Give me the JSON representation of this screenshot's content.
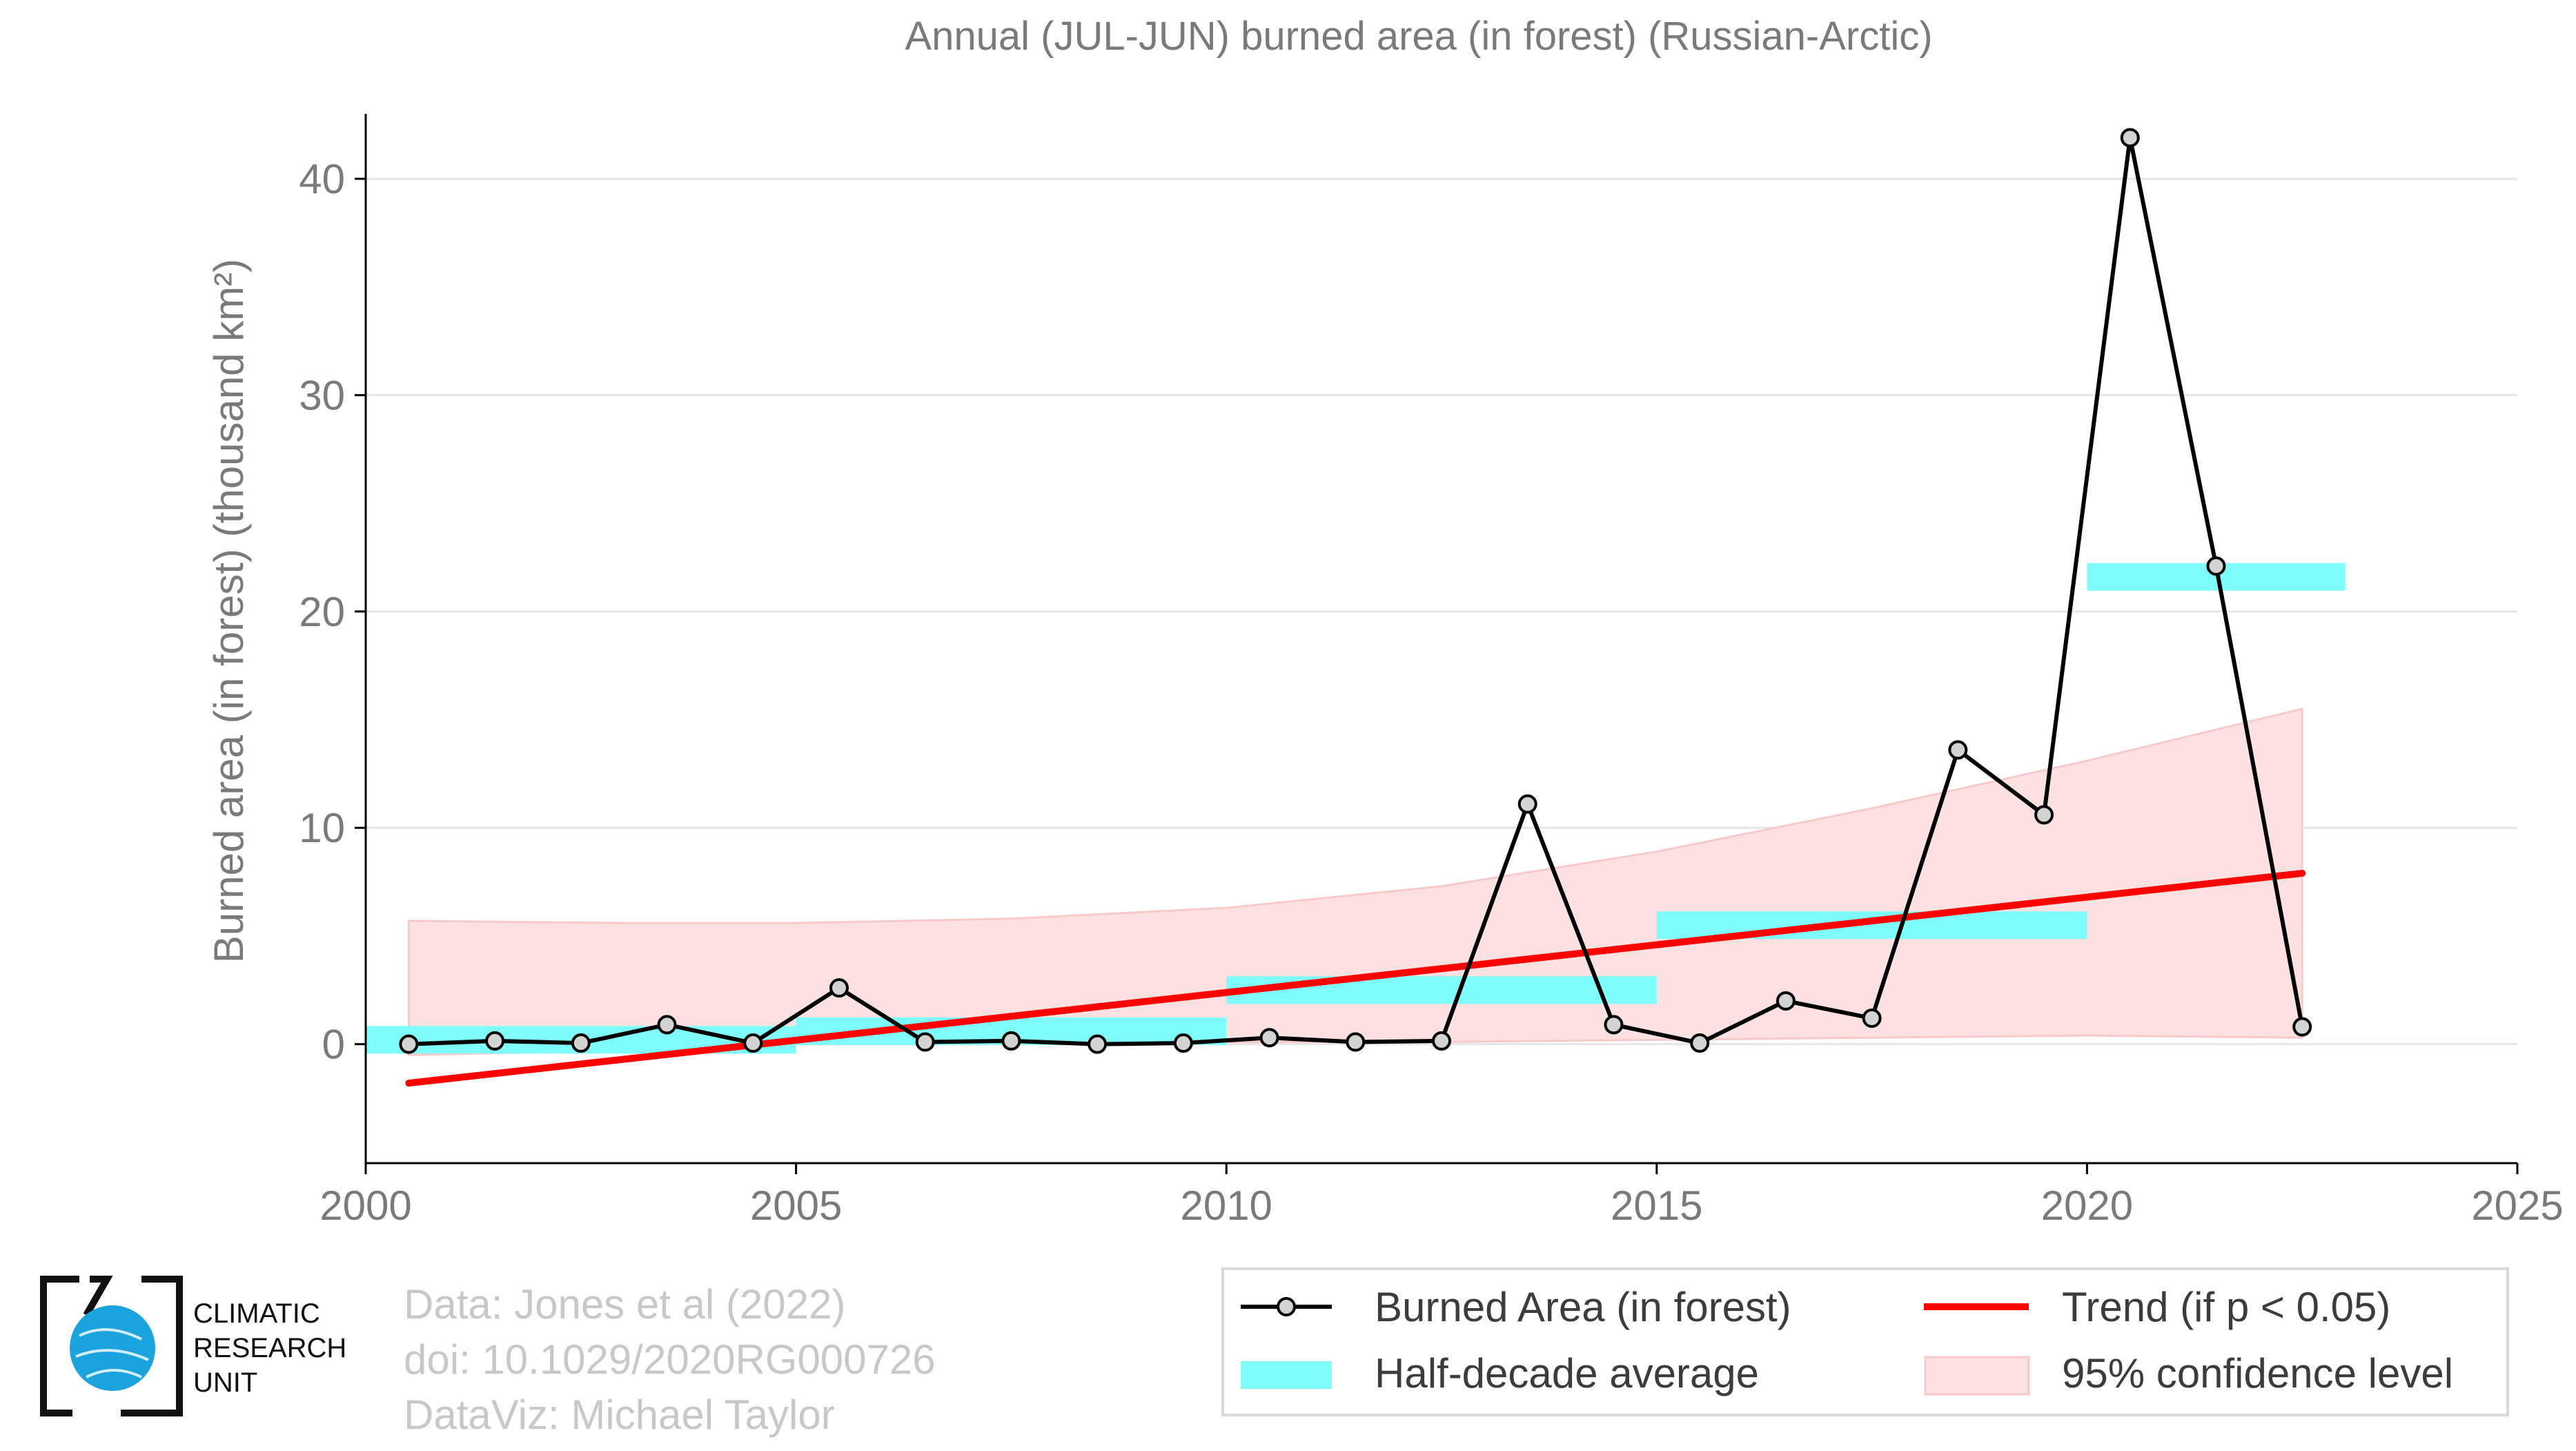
{
  "chart_data": {
    "type": "line",
    "title": "Annual (JUL-JUN) burned area (in forest) (Russian-Arctic)",
    "ylabel": "Burned area (in forest) (thousand km²)",
    "xlabel": "",
    "xlim": [
      2000,
      2025
    ],
    "ylim": [
      -5.5,
      43
    ],
    "x_ticks": [
      2000,
      2005,
      2010,
      2015,
      2020,
      2025
    ],
    "y_ticks": [
      0,
      10,
      20,
      30,
      40
    ],
    "grid": "horizontal",
    "legend_position": "bottom-right",
    "series": [
      {
        "name": "Burned Area (in forest)",
        "color": "#000000",
        "marker_fill": "#d3d3d3",
        "x": [
          2000.5,
          2001.5,
          2002.5,
          2003.5,
          2004.5,
          2005.5,
          2006.5,
          2007.5,
          2008.5,
          2009.5,
          2010.5,
          2011.5,
          2012.5,
          2013.5,
          2014.5,
          2015.5,
          2016.5,
          2017.5,
          2018.5,
          2019.5,
          2020.5,
          2021.5,
          2022.5
        ],
        "y": [
          0.0,
          0.15,
          0.05,
          0.9,
          0.05,
          2.6,
          0.1,
          0.15,
          0.0,
          0.05,
          0.3,
          0.1,
          0.15,
          11.1,
          0.9,
          0.05,
          2.0,
          1.2,
          13.6,
          10.6,
          41.9,
          22.1,
          0.8
        ]
      },
      {
        "name": "Half-decade average",
        "color": "#7ffcfc",
        "segments": [
          {
            "x0": 2000,
            "x1": 2005,
            "y": 0.2
          },
          {
            "x0": 2005,
            "x1": 2010,
            "y": 0.6
          },
          {
            "x0": 2010,
            "x1": 2015,
            "y": 2.5
          },
          {
            "x0": 2015,
            "x1": 2020,
            "y": 5.5
          },
          {
            "x0": 2020,
            "x1": 2023,
            "y": 21.6
          }
        ]
      },
      {
        "name": "Trend (if p < 0.05)",
        "color": "#ff0000",
        "x": [
          2000.5,
          2022.5
        ],
        "y": [
          -1.8,
          7.9
        ]
      },
      {
        "name": "95% confidence level",
        "color": "#fde1e1",
        "x": [
          2000.5,
          2003,
          2005,
          2007.5,
          2010,
          2012.5,
          2015,
          2017.5,
          2020,
          2022.5
        ],
        "upper": [
          5.7,
          5.6,
          5.6,
          5.8,
          6.3,
          7.3,
          8.9,
          10.9,
          13.1,
          15.5
        ],
        "lower": [
          -0.5,
          -0.3,
          0.0,
          0.0,
          0.1,
          0.1,
          0.2,
          0.3,
          0.4,
          0.3
        ]
      }
    ]
  },
  "credits": {
    "line1": "Data: Jones et al (2022)",
    "line2": "doi: 10.1029/2020RG000726",
    "line3": "DataViz: Michael Taylor"
  },
  "logo": {
    "line1": "CLIMATIC",
    "line2": "RESEARCH",
    "line3": "UNIT",
    "color": "#1aa3dd"
  }
}
